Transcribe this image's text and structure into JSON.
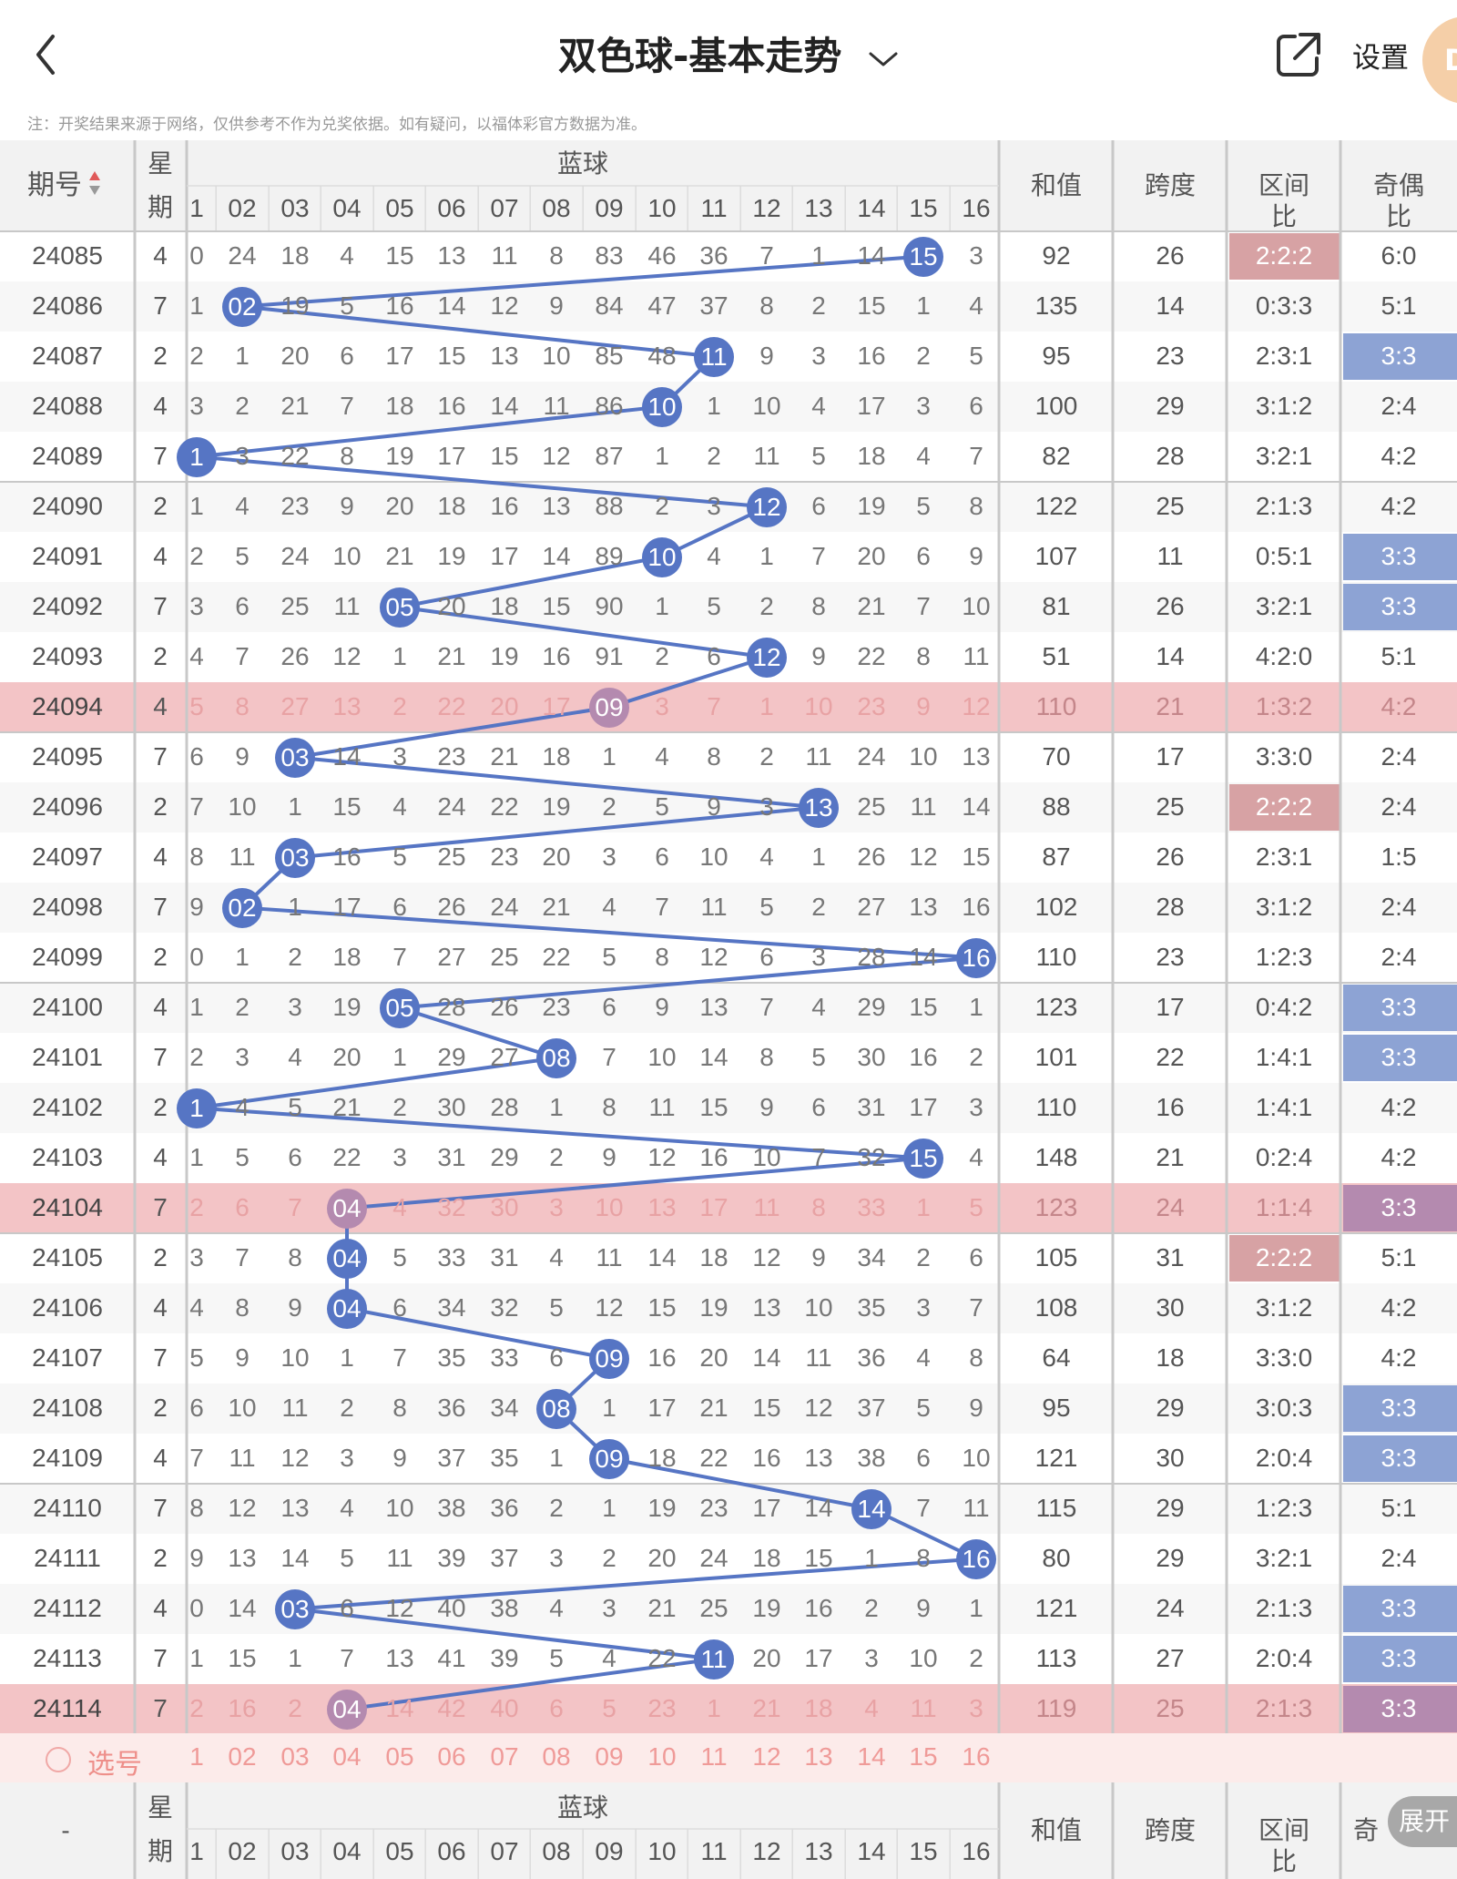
{
  "header": {
    "title": "双色球-基本走势",
    "settings_label": "设置",
    "avatar_text": "D"
  },
  "notice": "注：开奖结果来源于网络，仅供参考不作为兑奖依据。如有疑问，以福体彩官方数据为准。",
  "table_header": {
    "issue": "期号",
    "week_1": "星",
    "week_2": "期",
    "blue": "蓝球",
    "sum": "和值",
    "span": "跨度",
    "zone": "区间比",
    "parity": "奇偶比",
    "parity_cut": "奇",
    "footer_issue": "-",
    "blue_cols": [
      "1",
      "02",
      "03",
      "04",
      "05",
      "06",
      "07",
      "08",
      "09",
      "10",
      "11",
      "12",
      "13",
      "14",
      "15",
      "16"
    ]
  },
  "pick_label": "选号",
  "expand_label": "展开",
  "colors": {
    "ball": "#5675c4",
    "line": "#5675c4",
    "highlight_row": "#f3c4c6",
    "zone_hl": "#d7a2a4",
    "parity_hl": "#8da3d4"
  },
  "rows": [
    {
      "issue": "24085",
      "week": "4",
      "cells": [
        "0",
        "24",
        "18",
        "4",
        "15",
        "13",
        "11",
        "8",
        "83",
        "46",
        "36",
        "7",
        "1",
        "14",
        "15",
        "3"
      ],
      "ball": 15,
      "sum": "92",
      "span": "26",
      "zone": "2:2:2",
      "parity": "6:0",
      "hl": false,
      "zhl": true,
      "phl": false
    },
    {
      "issue": "24086",
      "week": "7",
      "cells": [
        "1",
        "02",
        "19",
        "5",
        "16",
        "14",
        "12",
        "9",
        "84",
        "47",
        "37",
        "8",
        "2",
        "15",
        "1",
        "4"
      ],
      "ball": 2,
      "sum": "135",
      "span": "14",
      "zone": "0:3:3",
      "parity": "5:1",
      "hl": false,
      "zhl": false,
      "phl": false
    },
    {
      "issue": "24087",
      "week": "2",
      "cells": [
        "2",
        "1",
        "20",
        "6",
        "17",
        "15",
        "13",
        "10",
        "85",
        "48",
        "11",
        "9",
        "3",
        "16",
        "2",
        "5"
      ],
      "ball": 11,
      "sum": "95",
      "span": "23",
      "zone": "2:3:1",
      "parity": "3:3",
      "hl": false,
      "zhl": false,
      "phl": true
    },
    {
      "issue": "24088",
      "week": "4",
      "cells": [
        "3",
        "2",
        "21",
        "7",
        "18",
        "16",
        "14",
        "11",
        "86",
        "10",
        "1",
        "10",
        "4",
        "17",
        "3",
        "6"
      ],
      "ball": 10,
      "sum": "100",
      "span": "29",
      "zone": "3:1:2",
      "parity": "2:4",
      "hl": false,
      "zhl": false,
      "phl": false
    },
    {
      "issue": "24089",
      "week": "7",
      "cells": [
        "1",
        "3",
        "22",
        "8",
        "19",
        "17",
        "15",
        "12",
        "87",
        "1",
        "2",
        "11",
        "5",
        "18",
        "4",
        "7"
      ],
      "ball": 1,
      "sum": "82",
      "span": "28",
      "zone": "3:2:1",
      "parity": "4:2",
      "hl": false,
      "zhl": false,
      "phl": false
    },
    {
      "issue": "24090",
      "week": "2",
      "cells": [
        "1",
        "4",
        "23",
        "9",
        "20",
        "18",
        "16",
        "13",
        "88",
        "2",
        "3",
        "12",
        "6",
        "19",
        "5",
        "8"
      ],
      "ball": 12,
      "sum": "122",
      "span": "25",
      "zone": "2:1:3",
      "parity": "4:2",
      "hl": false,
      "zhl": false,
      "phl": false
    },
    {
      "issue": "24091",
      "week": "4",
      "cells": [
        "2",
        "5",
        "24",
        "10",
        "21",
        "19",
        "17",
        "14",
        "89",
        "10",
        "4",
        "1",
        "7",
        "20",
        "6",
        "9"
      ],
      "ball": 10,
      "sum": "107",
      "span": "11",
      "zone": "0:5:1",
      "parity": "3:3",
      "hl": false,
      "zhl": false,
      "phl": true
    },
    {
      "issue": "24092",
      "week": "7",
      "cells": [
        "3",
        "6",
        "25",
        "11",
        "05",
        "20",
        "18",
        "15",
        "90",
        "1",
        "5",
        "2",
        "8",
        "21",
        "7",
        "10"
      ],
      "ball": 5,
      "sum": "81",
      "span": "26",
      "zone": "3:2:1",
      "parity": "3:3",
      "hl": false,
      "zhl": false,
      "phl": true
    },
    {
      "issue": "24093",
      "week": "2",
      "cells": [
        "4",
        "7",
        "26",
        "12",
        "1",
        "21",
        "19",
        "16",
        "91",
        "2",
        "6",
        "12",
        "9",
        "22",
        "8",
        "11"
      ],
      "ball": 12,
      "sum": "51",
      "span": "14",
      "zone": "4:2:0",
      "parity": "5:1",
      "hl": false,
      "zhl": false,
      "phl": false
    },
    {
      "issue": "24094",
      "week": "4",
      "cells": [
        "5",
        "8",
        "27",
        "13",
        "2",
        "22",
        "20",
        "17",
        "09",
        "3",
        "7",
        "1",
        "10",
        "23",
        "9",
        "12"
      ],
      "ball": 9,
      "sum": "110",
      "span": "21",
      "zone": "1:3:2",
      "parity": "4:2",
      "hl": true,
      "zhl": false,
      "phl": false
    },
    {
      "issue": "24095",
      "week": "7",
      "cells": [
        "6",
        "9",
        "03",
        "14",
        "3",
        "23",
        "21",
        "18",
        "1",
        "4",
        "8",
        "2",
        "11",
        "24",
        "10",
        "13"
      ],
      "ball": 3,
      "sum": "70",
      "span": "17",
      "zone": "3:3:0",
      "parity": "2:4",
      "hl": false,
      "zhl": false,
      "phl": false
    },
    {
      "issue": "24096",
      "week": "2",
      "cells": [
        "7",
        "10",
        "1",
        "15",
        "4",
        "24",
        "22",
        "19",
        "2",
        "5",
        "9",
        "3",
        "13",
        "25",
        "11",
        "14"
      ],
      "ball": 13,
      "sum": "88",
      "span": "25",
      "zone": "2:2:2",
      "parity": "2:4",
      "hl": false,
      "zhl": true,
      "phl": false
    },
    {
      "issue": "24097",
      "week": "4",
      "cells": [
        "8",
        "11",
        "03",
        "16",
        "5",
        "25",
        "23",
        "20",
        "3",
        "6",
        "10",
        "4",
        "1",
        "26",
        "12",
        "15"
      ],
      "ball": 3,
      "sum": "87",
      "span": "26",
      "zone": "2:3:1",
      "parity": "1:5",
      "hl": false,
      "zhl": false,
      "phl": false
    },
    {
      "issue": "24098",
      "week": "7",
      "cells": [
        "9",
        "02",
        "1",
        "17",
        "6",
        "26",
        "24",
        "21",
        "4",
        "7",
        "11",
        "5",
        "2",
        "27",
        "13",
        "16"
      ],
      "ball": 2,
      "sum": "102",
      "span": "28",
      "zone": "3:1:2",
      "parity": "2:4",
      "hl": false,
      "zhl": false,
      "phl": false
    },
    {
      "issue": "24099",
      "week": "2",
      "cells": [
        "0",
        "1",
        "2",
        "18",
        "7",
        "27",
        "25",
        "22",
        "5",
        "8",
        "12",
        "6",
        "3",
        "28",
        "14",
        "16"
      ],
      "ball": 16,
      "sum": "110",
      "span": "23",
      "zone": "1:2:3",
      "parity": "2:4",
      "hl": false,
      "zhl": false,
      "phl": false
    },
    {
      "issue": "24100",
      "week": "4",
      "cells": [
        "1",
        "2",
        "3",
        "19",
        "05",
        "28",
        "26",
        "23",
        "6",
        "9",
        "13",
        "7",
        "4",
        "29",
        "15",
        "1"
      ],
      "ball": 5,
      "sum": "123",
      "span": "17",
      "zone": "0:4:2",
      "parity": "3:3",
      "hl": false,
      "zhl": false,
      "phl": true
    },
    {
      "issue": "24101",
      "week": "7",
      "cells": [
        "2",
        "3",
        "4",
        "20",
        "1",
        "29",
        "27",
        "08",
        "7",
        "10",
        "14",
        "8",
        "5",
        "30",
        "16",
        "2"
      ],
      "ball": 8,
      "sum": "101",
      "span": "22",
      "zone": "1:4:1",
      "parity": "3:3",
      "hl": false,
      "zhl": false,
      "phl": true
    },
    {
      "issue": "24102",
      "week": "2",
      "cells": [
        "1",
        "4",
        "5",
        "21",
        "2",
        "30",
        "28",
        "1",
        "8",
        "11",
        "15",
        "9",
        "6",
        "31",
        "17",
        "3"
      ],
      "ball": 1,
      "sum": "110",
      "span": "16",
      "zone": "1:4:1",
      "parity": "4:2",
      "hl": false,
      "zhl": false,
      "phl": false
    },
    {
      "issue": "24103",
      "week": "4",
      "cells": [
        "1",
        "5",
        "6",
        "22",
        "3",
        "31",
        "29",
        "2",
        "9",
        "12",
        "16",
        "10",
        "7",
        "32",
        "15",
        "4"
      ],
      "ball": 15,
      "sum": "148",
      "span": "21",
      "zone": "0:2:4",
      "parity": "4:2",
      "hl": false,
      "zhl": false,
      "phl": false
    },
    {
      "issue": "24104",
      "week": "7",
      "cells": [
        "2",
        "6",
        "7",
        "04",
        "4",
        "32",
        "30",
        "3",
        "10",
        "13",
        "17",
        "11",
        "8",
        "33",
        "1",
        "5"
      ],
      "ball": 4,
      "sum": "123",
      "span": "24",
      "zone": "1:1:4",
      "parity": "3:3",
      "hl": true,
      "zhl": false,
      "phl": true
    },
    {
      "issue": "24105",
      "week": "2",
      "cells": [
        "3",
        "7",
        "8",
        "04",
        "5",
        "33",
        "31",
        "4",
        "11",
        "14",
        "18",
        "12",
        "9",
        "34",
        "2",
        "6"
      ],
      "ball": 4,
      "sum": "105",
      "span": "31",
      "zone": "2:2:2",
      "parity": "5:1",
      "hl": false,
      "zhl": true,
      "phl": false
    },
    {
      "issue": "24106",
      "week": "4",
      "cells": [
        "4",
        "8",
        "9",
        "04",
        "6",
        "34",
        "32",
        "5",
        "12",
        "15",
        "19",
        "13",
        "10",
        "35",
        "3",
        "7"
      ],
      "ball": 4,
      "sum": "108",
      "span": "30",
      "zone": "3:1:2",
      "parity": "4:2",
      "hl": false,
      "zhl": false,
      "phl": false
    },
    {
      "issue": "24107",
      "week": "7",
      "cells": [
        "5",
        "9",
        "10",
        "1",
        "7",
        "35",
        "33",
        "6",
        "09",
        "16",
        "20",
        "14",
        "11",
        "36",
        "4",
        "8"
      ],
      "ball": 9,
      "sum": "64",
      "span": "18",
      "zone": "3:3:0",
      "parity": "4:2",
      "hl": false,
      "zhl": false,
      "phl": false
    },
    {
      "issue": "24108",
      "week": "2",
      "cells": [
        "6",
        "10",
        "11",
        "2",
        "8",
        "36",
        "34",
        "08",
        "1",
        "17",
        "21",
        "15",
        "12",
        "37",
        "5",
        "9"
      ],
      "ball": 8,
      "sum": "95",
      "span": "29",
      "zone": "3:0:3",
      "parity": "3:3",
      "hl": false,
      "zhl": false,
      "phl": true
    },
    {
      "issue": "24109",
      "week": "4",
      "cells": [
        "7",
        "11",
        "12",
        "3",
        "9",
        "37",
        "35",
        "1",
        "09",
        "18",
        "22",
        "16",
        "13",
        "38",
        "6",
        "10"
      ],
      "ball": 9,
      "sum": "121",
      "span": "30",
      "zone": "2:0:4",
      "parity": "3:3",
      "hl": false,
      "zhl": false,
      "phl": true
    },
    {
      "issue": "24110",
      "week": "7",
      "cells": [
        "8",
        "12",
        "13",
        "4",
        "10",
        "38",
        "36",
        "2",
        "1",
        "19",
        "23",
        "17",
        "14",
        "14",
        "7",
        "11"
      ],
      "ball": 14,
      "sum": "115",
      "span": "29",
      "zone": "1:2:3",
      "parity": "5:1",
      "hl": false,
      "zhl": false,
      "phl": false
    },
    {
      "issue": "24111",
      "week": "2",
      "cells": [
        "9",
        "13",
        "14",
        "5",
        "11",
        "39",
        "37",
        "3",
        "2",
        "20",
        "24",
        "18",
        "15",
        "1",
        "8",
        "16"
      ],
      "ball": 16,
      "sum": "80",
      "span": "29",
      "zone": "3:2:1",
      "parity": "2:4",
      "hl": false,
      "zhl": false,
      "phl": false
    },
    {
      "issue": "24112",
      "week": "4",
      "cells": [
        "0",
        "14",
        "03",
        "6",
        "12",
        "40",
        "38",
        "4",
        "3",
        "21",
        "25",
        "19",
        "16",
        "2",
        "9",
        "1"
      ],
      "ball": 3,
      "sum": "121",
      "span": "24",
      "zone": "2:1:3",
      "parity": "3:3",
      "hl": false,
      "zhl": false,
      "phl": true
    },
    {
      "issue": "24113",
      "week": "7",
      "cells": [
        "1",
        "15",
        "1",
        "7",
        "13",
        "41",
        "39",
        "5",
        "4",
        "22",
        "11",
        "20",
        "17",
        "3",
        "10",
        "2"
      ],
      "ball": 11,
      "sum": "113",
      "span": "27",
      "zone": "2:0:4",
      "parity": "3:3",
      "hl": false,
      "zhl": false,
      "phl": true
    },
    {
      "issue": "24114",
      "week": "7",
      "cells": [
        "2",
        "16",
        "2",
        "04",
        "14",
        "42",
        "40",
        "6",
        "5",
        "23",
        "1",
        "21",
        "18",
        "4",
        "11",
        "3"
      ],
      "ball": 4,
      "sum": "119",
      "span": "25",
      "zone": "2:1:3",
      "parity": "3:3",
      "hl": true,
      "zhl": false,
      "phl": true
    }
  ]
}
